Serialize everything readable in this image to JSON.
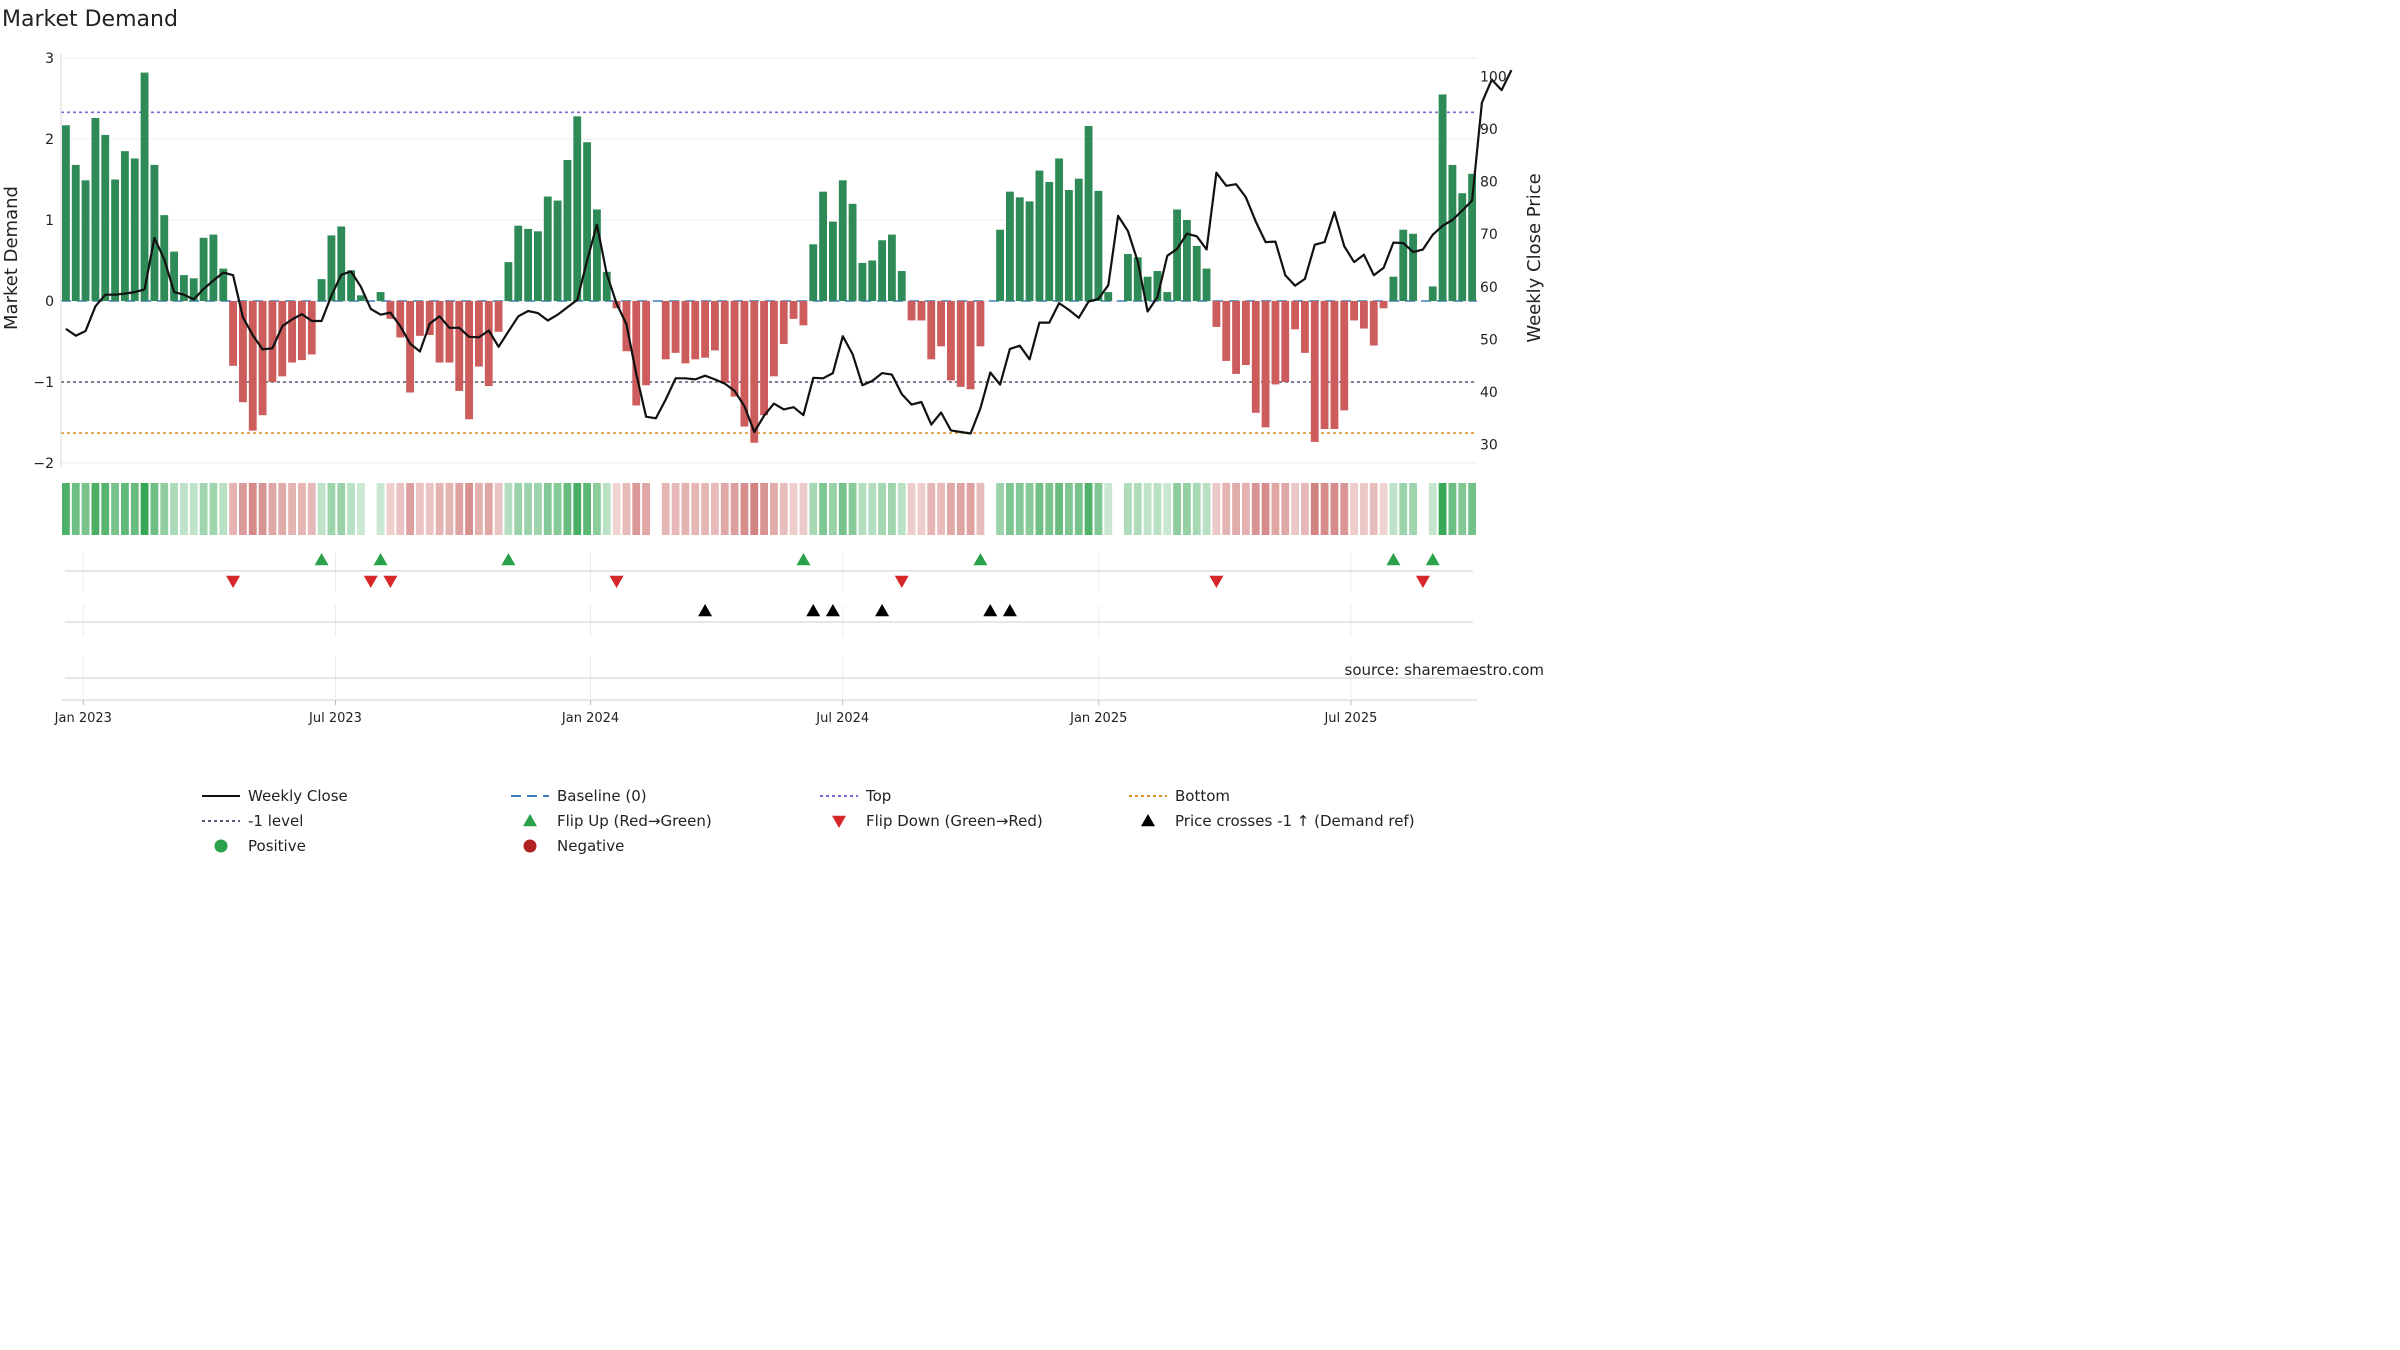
{
  "chart_data": {
    "type": "bar",
    "title": "Market Demand",
    "ylabel": "Market Demand",
    "y2label": "Weekly Close Price",
    "ylim": [
      -2.0,
      3.0
    ],
    "y2lim": [
      26.5,
      103.5
    ],
    "yticks": [
      3,
      2,
      1,
      0,
      -1,
      -2
    ],
    "ytick_labels": [
      "3",
      "2",
      "1",
      "0",
      "−1",
      "−2"
    ],
    "y2ticks": [
      100,
      90,
      80,
      70,
      60,
      50,
      40,
      30
    ],
    "y2tick_labels": [
      "100",
      "90",
      "80",
      "70",
      "60",
      "50",
      "40",
      "30"
    ],
    "x_range_weeks": [
      0,
      146
    ],
    "xticks": [
      {
        "label": "Jan 2023",
        "week": 2.3
      },
      {
        "label": "Jul 2023",
        "week": 28.3
      },
      {
        "label": "Jan 2024",
        "week": 54.6
      },
      {
        "label": "Jul 2024",
        "week": 80.6
      },
      {
        "label": "Jan 2025",
        "week": 107.0
      },
      {
        "label": "Jul 2025",
        "week": 133.0
      }
    ],
    "reference_lines": {
      "top": 2.33,
      "minus_one": -1.0,
      "bottom": -1.63,
      "baseline": 0
    },
    "demand": [
      2.17,
      1.68,
      1.49,
      2.26,
      2.05,
      1.5,
      1.85,
      1.76,
      2.82,
      1.68,
      1.06,
      0.61,
      0.32,
      0.28,
      0.78,
      0.82,
      0.4,
      -0.8,
      -1.25,
      -1.6,
      -1.41,
      -1.0,
      -0.93,
      -0.76,
      -0.73,
      -0.66,
      0.27,
      0.81,
      0.92,
      0.38,
      0.07,
      0.0,
      0.11,
      -0.22,
      -0.45,
      -1.13,
      -0.43,
      -0.42,
      -0.76,
      -0.76,
      -1.11,
      -1.46,
      -0.81,
      -1.05,
      -0.38,
      0.48,
      0.93,
      0.89,
      0.86,
      1.29,
      1.24,
      1.74,
      2.28,
      1.96,
      1.13,
      0.36,
      -0.09,
      -0.62,
      -1.29,
      -1.04,
      0.0,
      -0.72,
      -0.64,
      -0.77,
      -0.72,
      -0.7,
      -0.61,
      -1.01,
      -1.18,
      -1.55,
      -1.75,
      -1.41,
      -0.93,
      -0.53,
      -0.22,
      -0.3,
      0.7,
      1.35,
      0.98,
      1.49,
      1.2,
      0.47,
      0.5,
      0.75,
      0.82,
      0.37,
      -0.24,
      -0.24,
      -0.72,
      -0.56,
      -0.98,
      -1.06,
      -1.09,
      -0.56,
      0.0,
      0.88,
      1.35,
      1.28,
      1.23,
      1.61,
      1.47,
      1.76,
      1.37,
      1.51,
      2.16,
      1.36,
      0.11,
      0.0,
      0.58,
      0.54,
      0.3,
      0.37,
      0.11,
      1.13,
      1.0,
      0.68,
      0.4,
      -0.32,
      -0.74,
      -0.9,
      -0.79,
      -1.38,
      -1.56,
      -1.03,
      -1.0,
      -0.35,
      -0.64,
      -1.74,
      -1.58,
      -1.58,
      -1.35,
      -0.24,
      -0.34,
      -0.55,
      -0.09,
      0.3,
      0.88,
      0.83,
      0.0,
      0.18,
      2.55,
      1.68,
      1.33,
      1.57
    ],
    "close": [
      52.0,
      50.7,
      51.6,
      56.3,
      58.5,
      58.5,
      58.7,
      59.0,
      59.5,
      69.3,
      65.2,
      59.0,
      58.5,
      57.6,
      59.6,
      61.2,
      62.7,
      62.2,
      54.2,
      50.8,
      48.1,
      48.3,
      52.5,
      53.8,
      54.8,
      53.5,
      53.5,
      58.3,
      62.3,
      62.9,
      60.0,
      55.8,
      54.7,
      55.1,
      52.5,
      49.2,
      47.7,
      53.0,
      54.4,
      52.2,
      52.2,
      50.5,
      50.4,
      51.7,
      48.6,
      51.5,
      54.4,
      55.4,
      55.0,
      53.6,
      54.7,
      56.1,
      57.5,
      65.0,
      71.8,
      62.4,
      56.8,
      52.9,
      43.4,
      35.3,
      35.0,
      38.6,
      42.6,
      42.6,
      42.4,
      43.1,
      42.4,
      41.6,
      40.2,
      37.3,
      32.4,
      35.5,
      37.8,
      36.7,
      37.1,
      35.6,
      42.7,
      42.6,
      43.6,
      50.6,
      47.2,
      41.3,
      42.1,
      43.6,
      43.3,
      39.6,
      37.6,
      38.1,
      33.8,
      36.1,
      32.7,
      32.4,
      32.1,
      36.9,
      43.7,
      41.4,
      48.2,
      48.8,
      46.2,
      53.2,
      53.2,
      56.9,
      55.6,
      54.1,
      57.2,
      57.7,
      60.3,
      73.5,
      70.6,
      64.8,
      55.3,
      58.0,
      65.9,
      67.2,
      70.1,
      69.6,
      67.1,
      81.7,
      79.2,
      79.5,
      77.0,
      72.4,
      68.5,
      68.6,
      62.2,
      60.2,
      61.5,
      68.0,
      68.5,
      74.2,
      67.7,
      64.7,
      66.1,
      62.2,
      63.6,
      68.4,
      68.3,
      66.6,
      67.1,
      69.9,
      71.6,
      72.7,
      74.5,
      76.4,
      95.0,
      99.4,
      97.4,
      101.2
    ],
    "flip_up_weeks": [
      26,
      32,
      45,
      75,
      93,
      135,
      139
    ],
    "flip_down_weeks": [
      17,
      31,
      33,
      56,
      85,
      117,
      138
    ],
    "price_cross_weeks": [
      65,
      76,
      78,
      83,
      94,
      96
    ],
    "source": "source: sharemaestro.com",
    "legend": [
      {
        "label": "Weekly Close",
        "kind": "line",
        "color": "#111111",
        "dash": "none"
      },
      {
        "label": "Baseline (0)",
        "kind": "line",
        "color": "#3b7dbf",
        "dash": "10,6"
      },
      {
        "label": "Top",
        "kind": "line",
        "color": "#7b68d8",
        "dash": "3,3"
      },
      {
        "label": "Bottom",
        "kind": "line",
        "color": "#e0922a",
        "dash": "3,3"
      },
      {
        "label": "-1 level",
        "kind": "line",
        "color": "#555577",
        "dash": "3,3"
      },
      {
        "label": "Flip Up (Red→Green)",
        "kind": "tri-up",
        "color": "#2aa14a"
      },
      {
        "label": "Flip Down (Green→Red)",
        "kind": "tri-down",
        "color": "#d62728"
      },
      {
        "label": "Price crosses -1 ↑ (Demand ref)",
        "kind": "tri-up",
        "color": "#000000"
      },
      {
        "label": "Positive",
        "kind": "dot",
        "color": "#2aa14a"
      },
      {
        "label": "Negative",
        "kind": "dot",
        "color": "#b22222"
      }
    ],
    "colors": {
      "positive": "#2e8b57",
      "negative": "#cd5c5c",
      "close": "#111111",
      "heat_pos": "#2aa14a",
      "heat_neg": "#c0504d"
    }
  }
}
